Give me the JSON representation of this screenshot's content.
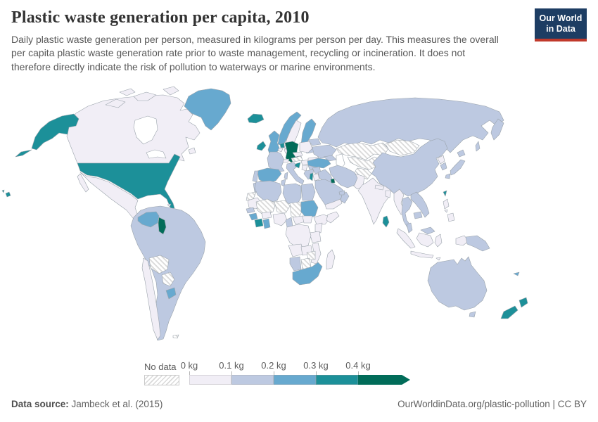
{
  "header": {
    "title": "Plastic waste generation per capita, 2010",
    "subtitle": "Daily plastic waste generation per person, measured in kilograms per person per day. This measures the overall per capita plastic waste generation rate prior to waste management, recycling or incineration. It does not therefore directly indicate the risk of pollution to waterways or marine environments.",
    "logo": {
      "line1": "Our World",
      "line2": "in Data",
      "bg_color": "#1d3d63",
      "accent_color": "#c0392b"
    }
  },
  "legend": {
    "no_data_label": "No data",
    "tick_labels": [
      "0 kg",
      "0.1 kg",
      "0.2 kg",
      "0.3 kg",
      "0.4 kg"
    ],
    "colors": [
      "#f1eef6",
      "#bdc9e1",
      "#67a9cf",
      "#1c9099",
      "#016c59"
    ]
  },
  "map": {
    "sea_color": "#ffffff",
    "border_color": "#9aa3ab",
    "no_data_pattern": "diagonal-hatch",
    "category_colors": {
      "0": "#f1eef6",
      "1": "#bdc9e1",
      "2": "#67a9cf",
      "3": "#1c9099",
      "4": "#016c59",
      "nd": "hatch"
    },
    "regions": {
      "canada": "0",
      "united-states": "3",
      "greenland": "2",
      "mexico": "0",
      "guatemala": "3",
      "honduras-nicaragua": "1",
      "costa-rica-panama": "2",
      "cuba": "1",
      "jamaica": "1",
      "hispaniola": "2",
      "puerto-rico": "2",
      "bahamas": "0",
      "lesser-antilles": "2",
      "south-america-mainland": "1",
      "venezuela": "2",
      "guyana": "4",
      "bolivia": "nd",
      "paraguay": "nd",
      "uruguay": "2",
      "chile": "0",
      "falkland-islands": "nd",
      "iceland": "3",
      "ireland": "3",
      "united-kingdom": "2",
      "norway": "2",
      "sweden": "0",
      "finland": "2",
      "denmark": "0",
      "baltic-states": "1",
      "netherlands": "3",
      "belgium": "0",
      "germany": "4",
      "france": "1",
      "spain": "2",
      "portugal": "1",
      "italy": "1",
      "switzerland": "0",
      "czechia": "0",
      "austria": "nd",
      "poland": "0",
      "hungary": "0",
      "croatia": "3",
      "serbia": "0",
      "romania": "0",
      "bulgaria": "1",
      "greece": "1",
      "ukraine": "1",
      "belarus": "1",
      "russia": "1",
      "kazakhstan": "nd",
      "central-asia": "nd",
      "afghanistan": "nd",
      "mongolia": "nd",
      "china": "1",
      "north-korea": "0",
      "south-korea": "1",
      "japan": "1",
      "taiwan": "3",
      "turkey": "2",
      "caucasus": "1",
      "syria": "1",
      "iraq": "1",
      "israel": "3",
      "jordan": "0",
      "saudi-arabia": "1",
      "kuwait": "4",
      "yemen": "0",
      "oman": "1",
      "uae": "1",
      "iran": "1",
      "pakistan": "0",
      "india": "0",
      "nepal": "0",
      "bangladesh": "0",
      "sri-lanka": "3",
      "myanmar": "0",
      "thailand": "1",
      "vietnam": "1",
      "cambodia": "1",
      "malaysia": "1",
      "indonesia": "0",
      "philippines": "0",
      "papua-new-guinea": "1",
      "morocco": "1",
      "western-sahara": "nd",
      "algeria": "1",
      "tunisia": "1",
      "libya": "1",
      "egypt": "1",
      "mauritania": "0",
      "mali": "nd",
      "niger": "nd",
      "chad": "nd",
      "sudan": "2",
      "ethiopia": "0",
      "somalia": "0",
      "senegal": "1",
      "guinea": "2",
      "cote-divoire": "3",
      "ghana": "2",
      "burkina-faso": "0",
      "nigeria": "0",
      "cameroon": "1",
      "central-african-republic": "0",
      "south-sudan": "0",
      "kenya": "0",
      "tanzania": "0",
      "dr-congo": "0",
      "angola": "0",
      "zambia": "0",
      "mozambique": "0",
      "zimbabwe": "nd",
      "botswana": "nd",
      "namibia": "1",
      "south-africa": "2",
      "madagascar": "0",
      "australia": "1",
      "new-zealand": "3",
      "new-caledonia": "2"
    }
  },
  "footer": {
    "source_label": "Data source:",
    "source_text": "Jambeck et al. (2015)",
    "link": "OurWorldinData.org/plastic-pollution",
    "license_suffix": " | CC BY"
  }
}
